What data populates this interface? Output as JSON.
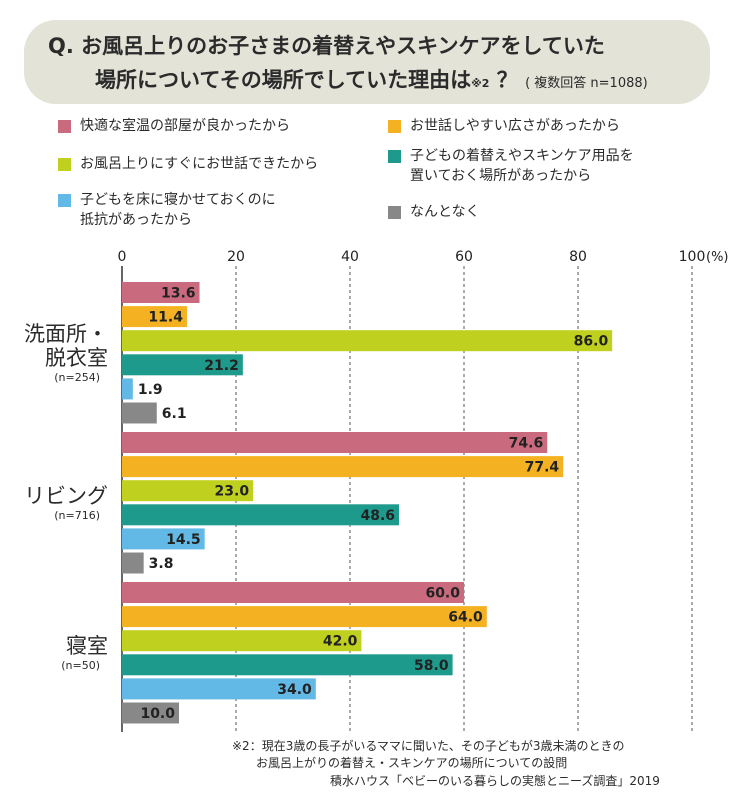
{
  "question": {
    "prefix": "Q.",
    "line1": "お風呂上りのお子さまの着替えやスキンケアをしていた",
    "line2": "場所についてその場所でしていた理由は",
    "note_mark": "※2",
    "qmark": "？",
    "sample": "( 複数回答 n=1088)"
  },
  "legend": [
    {
      "lines": [
        "快適な室温の部屋が良かったから"
      ],
      "color": "#c96a7e"
    },
    {
      "lines": [
        "お世話しやすい広さがあったから"
      ],
      "color": "#f4b223"
    },
    {
      "lines": [
        "お風呂上りにすぐにお世話できたから"
      ],
      "color": "#bfd01f"
    },
    {
      "lines": [
        "子どもの着替えやスキンケア用品を",
        "置いておく場所があったから"
      ],
      "color": "#1e9a8d"
    },
    {
      "lines": [
        "子どもを床に寝かせておくのに",
        "抵抗があったから"
      ],
      "color": "#62b9e6"
    },
    {
      "lines": [
        "なんとなく"
      ],
      "color": "#888888"
    }
  ],
  "chart_data": {
    "type": "bar",
    "orientation": "horizontal",
    "xlim": [
      0,
      100
    ],
    "x_ticks": [
      "0",
      "20",
      "40",
      "60",
      "80",
      "100"
    ],
    "unit": "(%)",
    "series_colors": [
      "#c96a7e",
      "#f4b223",
      "#bfd01f",
      "#1e9a8d",
      "#62b9e6",
      "#888888"
    ],
    "groups": [
      {
        "label_lines": [
          "洗面所・",
          "脱衣室"
        ],
        "n": "(n=254)",
        "values": [
          13.6,
          11.4,
          86.0,
          21.2,
          1.9,
          6.1
        ]
      },
      {
        "label_lines": [
          "リビング"
        ],
        "n": "(n=716)",
        "values": [
          74.6,
          77.4,
          23.0,
          48.6,
          14.5,
          3.8
        ]
      },
      {
        "label_lines": [
          "寝室"
        ],
        "n": "(n=50)",
        "values": [
          60.0,
          64.0,
          42.0,
          58.0,
          34.0,
          10.0
        ]
      }
    ]
  },
  "footnotes": {
    "note1": "※2：現在3歳の長子がいるママに聞いた、その子どもが3歳未満のときの",
    "note2": "お風呂上がりの着替え・スキンケアの場所についての設問",
    "source": "積水ハウス「ベビーのいる暮らしの実態とニーズ調査」2019"
  }
}
